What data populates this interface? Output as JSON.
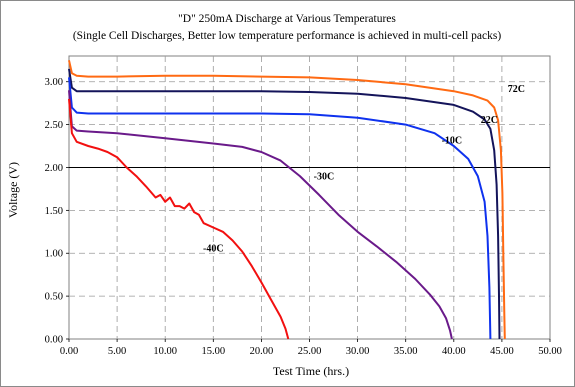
{
  "chart_data": {
    "type": "line",
    "title": "\"D\" 250mA Discharge at Various Temperatures",
    "subtitle": "(Single Cell Discharges, Better low temperature performance is achieved in multi-cell packs)",
    "xlabel": "Test Time (hrs.)",
    "ylabel": "Voltage (V)",
    "xlim": [
      0,
      50
    ],
    "ylim": [
      0,
      3.3
    ],
    "xticks": [
      "0.00",
      "5.00",
      "10.00",
      "15.00",
      "20.00",
      "25.00",
      "30.00",
      "35.00",
      "40.00",
      "45.00",
      "50.00"
    ],
    "yticks": [
      "0.00",
      "0.50",
      "1.00",
      "1.50",
      "2.00",
      "2.50",
      "3.00"
    ],
    "grid": true,
    "reference_line_y": 2.0,
    "series": [
      {
        "name": "72C",
        "color": "#ff6a13",
        "points": [
          [
            0,
            3.25
          ],
          [
            0.3,
            3.1
          ],
          [
            0.8,
            3.07
          ],
          [
            2,
            3.06
          ],
          [
            5,
            3.06
          ],
          [
            10,
            3.07
          ],
          [
            15,
            3.07
          ],
          [
            20,
            3.06
          ],
          [
            25,
            3.05
          ],
          [
            30,
            3.02
          ],
          [
            35,
            2.97
          ],
          [
            40,
            2.89
          ],
          [
            42,
            2.84
          ],
          [
            43.5,
            2.78
          ],
          [
            44.2,
            2.7
          ],
          [
            44.6,
            2.55
          ],
          [
            44.9,
            2.2
          ],
          [
            45.05,
            1.7
          ],
          [
            45.15,
            1.0
          ],
          [
            45.25,
            0.3
          ],
          [
            45.3,
            0
          ]
        ]
      },
      {
        "name": "22C",
        "color": "#14145a",
        "points": [
          [
            0,
            3.15
          ],
          [
            0.3,
            2.93
          ],
          [
            0.8,
            2.89
          ],
          [
            2,
            2.89
          ],
          [
            5,
            2.89
          ],
          [
            10,
            2.89
          ],
          [
            15,
            2.89
          ],
          [
            20,
            2.89
          ],
          [
            25,
            2.88
          ],
          [
            30,
            2.86
          ],
          [
            35,
            2.81
          ],
          [
            40,
            2.73
          ],
          [
            42,
            2.65
          ],
          [
            43.2,
            2.56
          ],
          [
            43.8,
            2.45
          ],
          [
            44.2,
            2.2
          ],
          [
            44.45,
            1.8
          ],
          [
            44.6,
            1.2
          ],
          [
            44.7,
            0.5
          ],
          [
            44.75,
            0
          ]
        ]
      },
      {
        "name": "-10C",
        "color": "#0f32ee",
        "points": [
          [
            0,
            3.05
          ],
          [
            0.3,
            2.7
          ],
          [
            0.8,
            2.64
          ],
          [
            2,
            2.63
          ],
          [
            5,
            2.63
          ],
          [
            10,
            2.63
          ],
          [
            15,
            2.63
          ],
          [
            20,
            2.63
          ],
          [
            25,
            2.62
          ],
          [
            30,
            2.58
          ],
          [
            35,
            2.5
          ],
          [
            38,
            2.4
          ],
          [
            40,
            2.25
          ],
          [
            41.5,
            2.1
          ],
          [
            42.5,
            1.9
          ],
          [
            43.2,
            1.6
          ],
          [
            43.5,
            1.2
          ],
          [
            43.7,
            0.6
          ],
          [
            43.8,
            0
          ]
        ]
      },
      {
        "name": "-30C",
        "color": "#6a1a8a",
        "points": [
          [
            0,
            2.9
          ],
          [
            0.3,
            2.48
          ],
          [
            0.8,
            2.43
          ],
          [
            2,
            2.42
          ],
          [
            5,
            2.4
          ],
          [
            10,
            2.34
          ],
          [
            15,
            2.28
          ],
          [
            18,
            2.24
          ],
          [
            20,
            2.18
          ],
          [
            22,
            2.08
          ],
          [
            24,
            1.9
          ],
          [
            26,
            1.68
          ],
          [
            28,
            1.45
          ],
          [
            30,
            1.25
          ],
          [
            32,
            1.08
          ],
          [
            34,
            0.9
          ],
          [
            36,
            0.7
          ],
          [
            37.5,
            0.52
          ],
          [
            38.5,
            0.38
          ],
          [
            39.2,
            0.24
          ],
          [
            39.6,
            0.1
          ],
          [
            39.8,
            0
          ]
        ]
      },
      {
        "name": "-40C",
        "color": "#f21010",
        "points": [
          [
            0,
            2.8
          ],
          [
            0.3,
            2.4
          ],
          [
            0.8,
            2.3
          ],
          [
            2,
            2.25
          ],
          [
            3,
            2.22
          ],
          [
            4,
            2.18
          ],
          [
            5,
            2.12
          ],
          [
            6,
            2.0
          ],
          [
            7,
            1.9
          ],
          [
            8,
            1.78
          ],
          [
            9,
            1.65
          ],
          [
            9.5,
            1.68
          ],
          [
            10,
            1.6
          ],
          [
            10.5,
            1.65
          ],
          [
            11,
            1.55
          ],
          [
            11.5,
            1.55
          ],
          [
            12,
            1.52
          ],
          [
            12.5,
            1.58
          ],
          [
            13,
            1.48
          ],
          [
            13.5,
            1.45
          ],
          [
            14,
            1.35
          ],
          [
            15,
            1.3
          ],
          [
            16,
            1.25
          ],
          [
            17,
            1.15
          ],
          [
            18,
            1.02
          ],
          [
            19,
            0.85
          ],
          [
            20,
            0.66
          ],
          [
            21,
            0.46
          ],
          [
            22,
            0.26
          ],
          [
            22.5,
            0.12
          ],
          [
            22.8,
            0
          ]
        ]
      }
    ],
    "label_texts": [
      "72C",
      "22C",
      "-10C",
      "-30C",
      "-40C"
    ],
    "label_positions_data": [
      [
        46.5,
        2.88
      ],
      [
        43.7,
        2.52
      ],
      [
        39.8,
        2.28
      ],
      [
        26.5,
        1.86
      ],
      [
        15.0,
        1.02
      ]
    ]
  }
}
